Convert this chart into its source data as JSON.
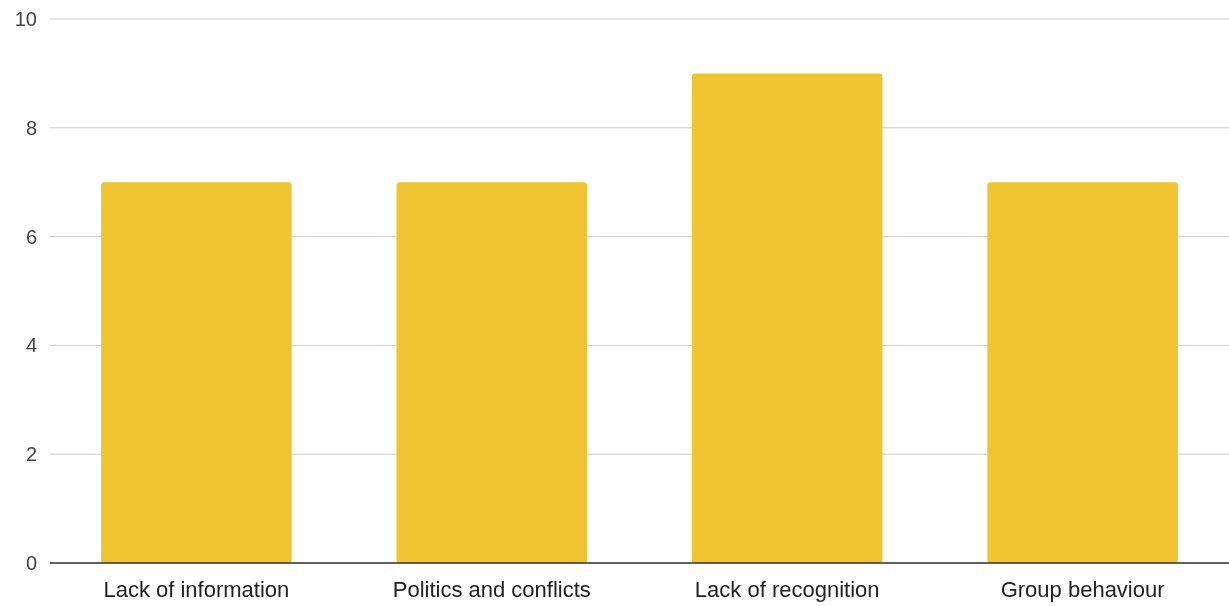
{
  "chart_data": {
    "type": "bar",
    "categories": [
      "Lack of information",
      "Politics and conflicts",
      "Lack of recognition",
      "Group behaviour"
    ],
    "values": [
      7,
      7,
      9,
      7
    ],
    "color": "#f0c431",
    "ylim": [
      0,
      10
    ],
    "yticks": [
      0,
      2,
      4,
      6,
      8,
      10
    ],
    "grid": "y"
  }
}
